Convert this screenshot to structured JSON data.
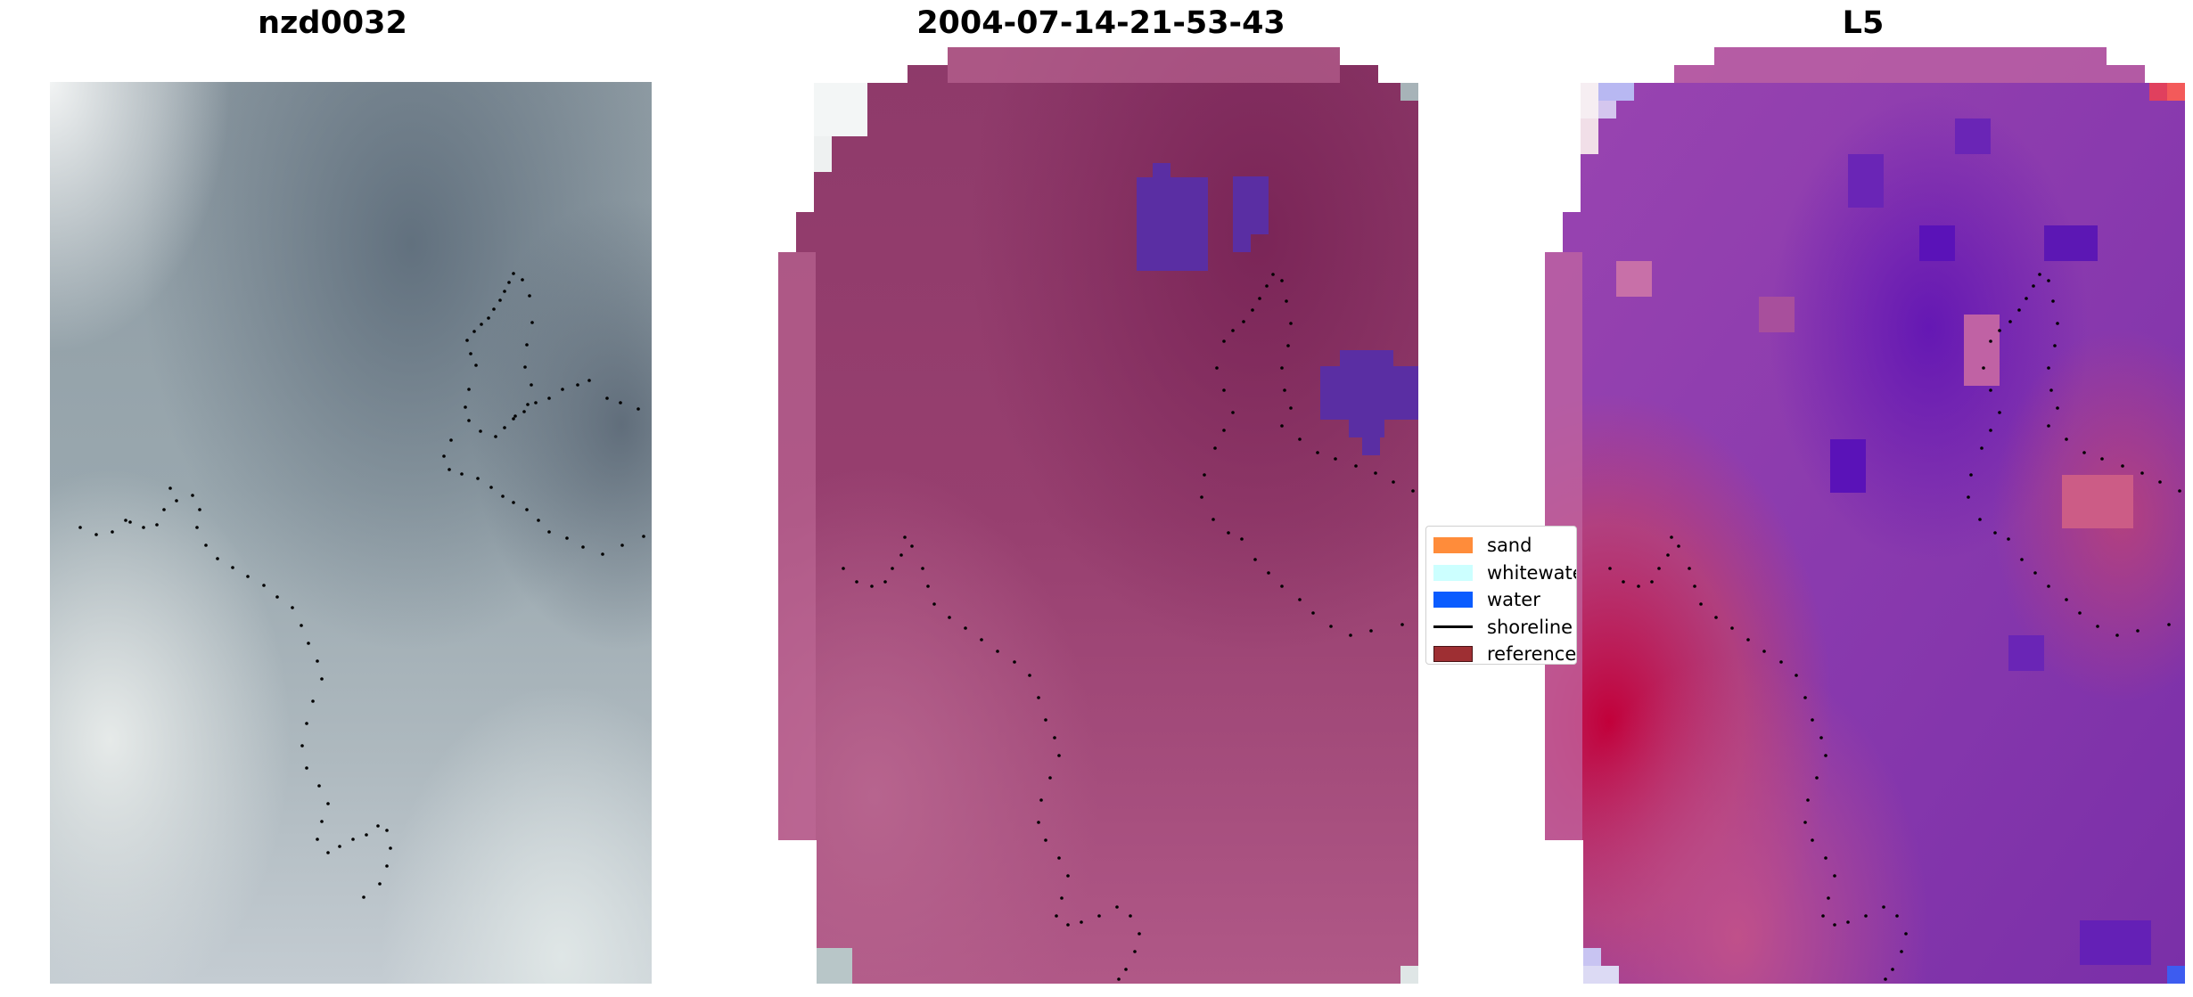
{
  "panels": [
    {
      "title": "nzd0032"
    },
    {
      "title": "2004-07-14-21-53-43"
    },
    {
      "title": "L5"
    }
  ],
  "legend": {
    "items": [
      {
        "label": "sand",
        "color": "#ff8c3a",
        "kind": "patch"
      },
      {
        "label": "whitewater",
        "color": "#ccffff",
        "kind": "patch"
      },
      {
        "label": "water",
        "color": "#0a5cff",
        "kind": "patch"
      },
      {
        "label": "shoreline",
        "color": "#000000",
        "kind": "line"
      },
      {
        "label": "reference",
        "color": "#9e2f33",
        "kind": "patch"
      }
    ]
  }
}
